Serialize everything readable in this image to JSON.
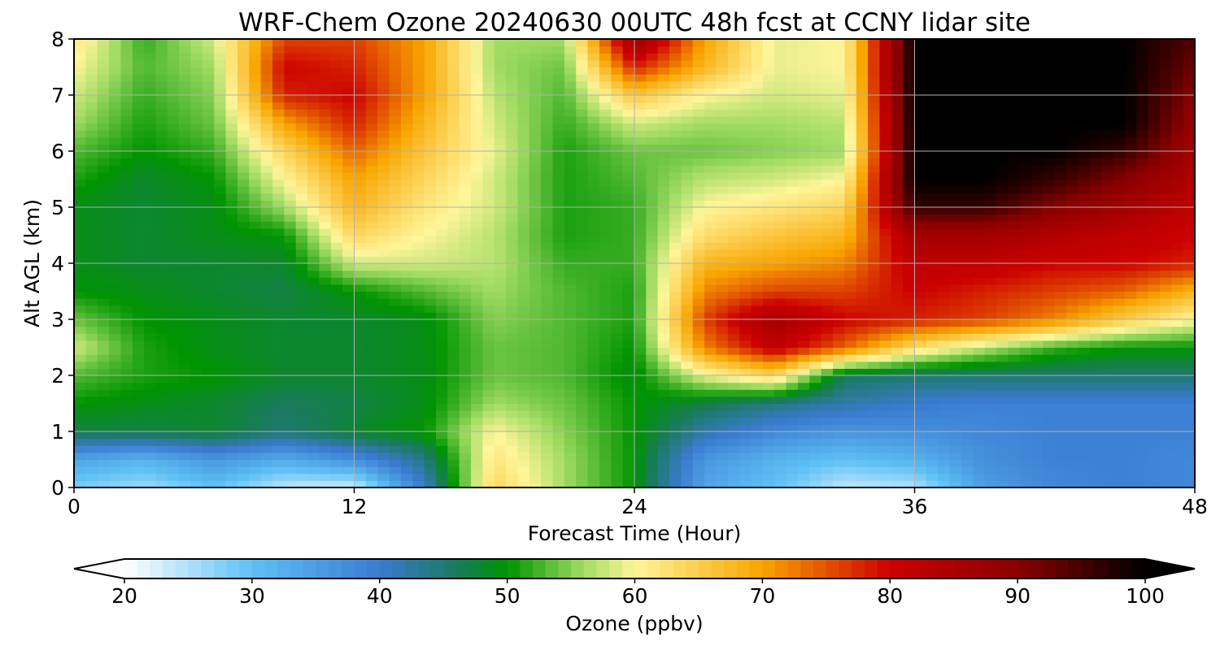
{
  "chart_data": {
    "type": "heatmap",
    "title": "WRF-Chem Ozone  20240630 00UTC 48h fcst at CCNY lidar site",
    "xlabel": "Forecast Time (Hour)",
    "ylabel": "Alt AGL (km)",
    "xlim": [
      0,
      48
    ],
    "ylim": [
      0,
      8
    ],
    "x_ticks": [
      0,
      12,
      24,
      36,
      48
    ],
    "y_ticks": [
      0,
      1,
      2,
      3,
      4,
      5,
      6,
      7,
      8
    ],
    "grid": true,
    "x": [
      0,
      3,
      6,
      9,
      12,
      15,
      18,
      21,
      24,
      27,
      30,
      33,
      36,
      39,
      42,
      45,
      48
    ],
    "y": [
      0,
      0.5,
      1,
      1.5,
      2,
      2.5,
      3,
      3.5,
      4,
      4.5,
      5,
      5.5,
      6,
      6.5,
      7,
      7.5,
      8
    ],
    "z": [
      [
        28,
        26,
        30,
        24,
        23,
        40,
        64,
        56,
        50,
        34,
        30,
        24,
        25,
        35,
        38,
        39,
        38
      ],
      [
        34,
        32,
        36,
        33,
        37,
        44,
        62,
        56,
        50,
        36,
        32,
        30,
        32,
        37,
        39,
        39,
        38
      ],
      [
        47,
        47,
        48,
        45,
        48,
        50,
        60,
        55,
        50,
        42,
        38,
        36,
        37,
        38,
        39,
        39,
        39
      ],
      [
        50,
        49,
        48,
        46,
        47,
        49,
        56,
        54,
        50,
        47,
        44,
        42,
        40,
        39,
        39,
        39,
        39
      ],
      [
        53,
        51,
        50,
        48,
        48,
        49,
        54,
        53,
        49,
        59,
        64,
        46,
        45,
        45,
        45,
        45,
        45
      ],
      [
        58,
        51,
        49,
        48,
        48,
        49,
        54,
        53,
        50,
        72,
        82,
        74,
        63,
        57,
        52,
        50,
        50
      ],
      [
        54,
        50,
        49,
        48,
        48,
        49,
        55,
        53,
        51,
        76,
        86,
        80,
        78,
        76,
        72,
        65,
        60
      ],
      [
        50,
        49,
        48,
        47,
        50,
        53,
        56,
        53,
        51,
        72,
        76,
        76,
        80,
        78,
        76,
        74,
        68
      ],
      [
        49,
        48,
        48,
        48,
        58,
        58,
        57,
        52,
        52,
        68,
        70,
        72,
        82,
        82,
        80,
        80,
        78
      ],
      [
        49,
        48,
        49,
        50,
        64,
        60,
        57,
        51,
        52,
        63,
        66,
        68,
        86,
        86,
        84,
        82,
        80
      ],
      [
        49,
        48,
        49,
        56,
        68,
        62,
        58,
        51,
        52,
        60,
        62,
        64,
        96,
        96,
        90,
        86,
        82
      ],
      [
        51,
        48,
        50,
        60,
        70,
        64,
        58,
        51,
        53,
        57,
        58,
        60,
        100,
        100,
        96,
        90,
        84
      ],
      [
        53,
        50,
        52,
        64,
        74,
        66,
        59,
        51,
        54,
        54,
        55,
        56,
        100,
        100,
        100,
        96,
        86
      ],
      [
        56,
        51,
        54,
        70,
        78,
        68,
        58,
        52,
        58,
        56,
        56,
        57,
        100,
        100,
        100,
        100,
        88
      ],
      [
        58,
        52,
        55,
        78,
        80,
        70,
        57,
        53,
        66,
        60,
        58,
        59,
        100,
        100,
        100,
        100,
        90
      ],
      [
        60,
        53,
        56,
        80,
        78,
        70,
        56,
        54,
        78,
        68,
        59,
        60,
        100,
        100,
        100,
        100,
        92
      ],
      [
        62,
        52,
        58,
        76,
        76,
        70,
        56,
        56,
        88,
        70,
        59,
        60,
        100,
        100,
        100,
        100,
        94
      ]
    ],
    "colorbar": {
      "label": "Ozone  (ppbv)",
      "min": 20,
      "max": 100,
      "ticks": [
        20,
        30,
        40,
        50,
        60,
        70,
        80,
        90,
        100
      ],
      "extend": "both",
      "colors": [
        "#ffffff",
        "#5fc1f5",
        "#3a7ad0",
        "#1a7a5e",
        "#009400",
        "#a2dc63",
        "#fff59a",
        "#f8a500",
        "#cc0000",
        "#8a0000",
        "#000000"
      ],
      "stops": [
        20,
        30,
        40,
        46,
        50,
        56,
        60,
        70,
        80,
        90,
        100
      ]
    }
  }
}
